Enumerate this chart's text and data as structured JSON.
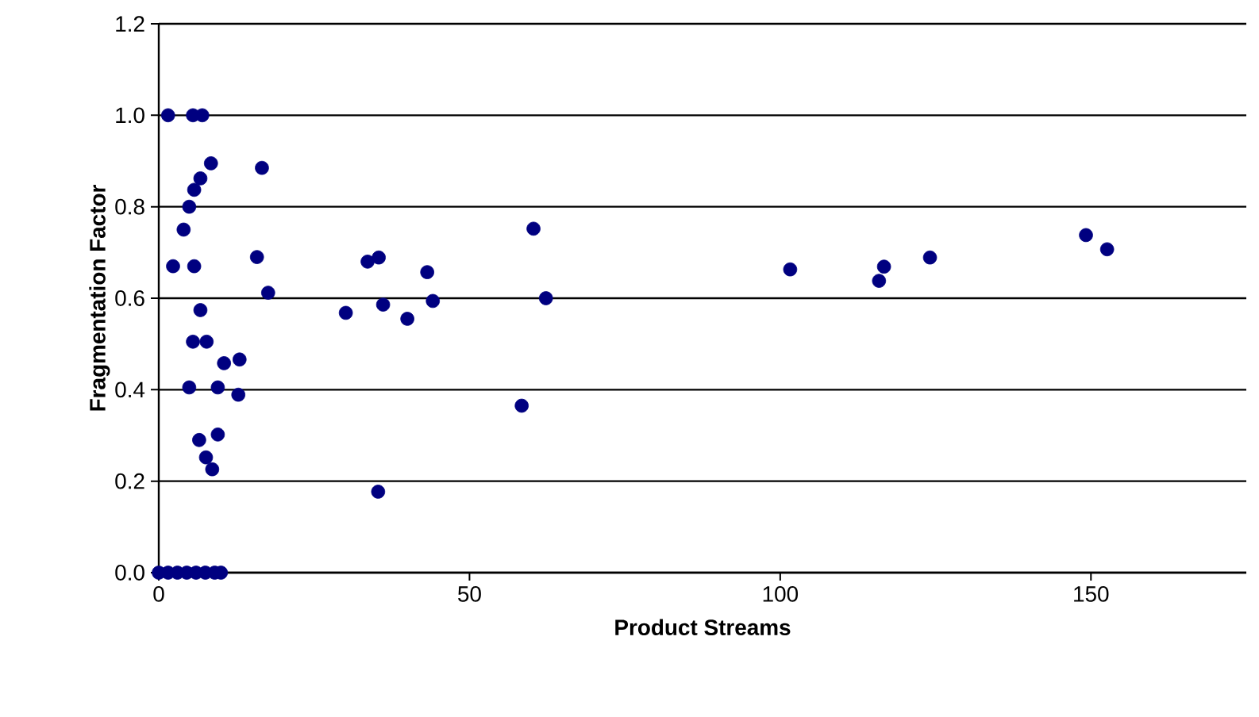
{
  "chart_data": {
    "type": "scatter",
    "xlabel": "Product Streams",
    "ylabel": "Fragmentation Factor",
    "xlim": [
      0,
      175
    ],
    "ylim": [
      0,
      1.2
    ],
    "xticks": [
      0,
      50,
      100,
      150
    ],
    "yticks": [
      {
        "value": 0,
        "label": "0.0"
      },
      {
        "value": 0.2,
        "label": "0.2"
      },
      {
        "value": 0.4,
        "label": "0.4"
      },
      {
        "value": 0.6,
        "label": "0.6"
      },
      {
        "value": 0.8,
        "label": "0.8"
      },
      {
        "value": 1.0,
        "label": "1.0"
      },
      {
        "value": 1.2,
        "label": "1.2"
      }
    ],
    "grid": "y",
    "series": [
      {
        "color": "#000080",
        "x": [
          1.5,
          5.5,
          7,
          8.4,
          16.6,
          6.7,
          5.7,
          4.9,
          4.0,
          2.3,
          5.7,
          15.8,
          17.6,
          6.7,
          5.5,
          7.7,
          10.5,
          13.0,
          4.9,
          9.5,
          12.8,
          6.5,
          9.5,
          7.6,
          8.6,
          35.3,
          30.1,
          33.6,
          35.4,
          36.1,
          40.0,
          43.2,
          44.1,
          60.3,
          58.4,
          62.3,
          101.6,
          116.7,
          115.9,
          124.1,
          149.2,
          152.6,
          0,
          1.5,
          3,
          4.5,
          6,
          7.5,
          9,
          10
        ],
        "values": [
          1.0,
          1.0,
          1.0,
          0.895,
          0.885,
          0.862,
          0.837,
          0.8,
          0.75,
          0.67,
          0.67,
          0.69,
          0.612,
          0.574,
          0.505,
          0.505,
          0.458,
          0.466,
          0.405,
          0.405,
          0.389,
          0.29,
          0.302,
          0.252,
          0.226,
          0.177,
          0.568,
          0.68,
          0.689,
          0.586,
          0.555,
          0.657,
          0.594,
          0.752,
          0.365,
          0.6,
          0.663,
          0.669,
          0.638,
          0.689,
          0.738,
          0.707,
          0,
          0,
          0,
          0,
          0,
          0,
          0,
          0
        ]
      }
    ]
  }
}
